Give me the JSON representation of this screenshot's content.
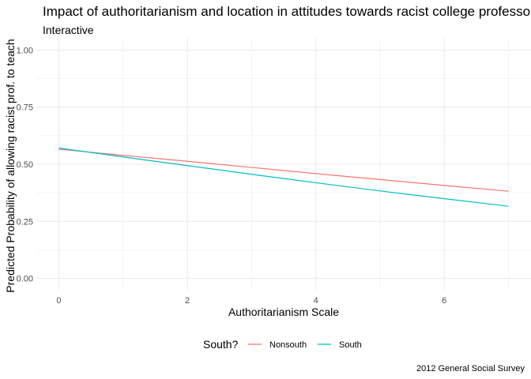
{
  "chart_data": {
    "type": "line",
    "title": "Impact of authoritarianism and location in attitudes towards racist college professors",
    "subtitle": "Interactive",
    "xlabel": "Authoritarianism Scale",
    "ylabel": "Predicted Probability of allowing racist prof. to teach",
    "caption": "2012 General Social Survey",
    "xlim": [
      -0.35,
      7.35
    ],
    "ylim": [
      -0.05,
      1.05
    ],
    "x_ticks": [
      0,
      2,
      4,
      6
    ],
    "x_tick_labels": [
      "0",
      "2",
      "4",
      "6"
    ],
    "y_ticks": [
      0,
      0.25,
      0.5,
      0.75,
      1.0
    ],
    "y_tick_labels": [
      "0.00",
      "0.25",
      "0.50",
      "0.75",
      "1.00"
    ],
    "grid": true,
    "legend": {
      "title": "South?",
      "position": "bottom"
    },
    "series": [
      {
        "name": "Nonsouth",
        "color": "#F8766D",
        "x": [
          0,
          1,
          2,
          3,
          4,
          5,
          6,
          7
        ],
        "y": [
          0.566,
          0.539,
          0.513,
          0.486,
          0.459,
          0.433,
          0.407,
          0.382
        ]
      },
      {
        "name": "South",
        "color": "#00BFC4",
        "x": [
          0,
          1,
          2,
          3,
          4,
          5,
          6,
          7
        ],
        "y": [
          0.571,
          0.532,
          0.494,
          0.456,
          0.419,
          0.383,
          0.349,
          0.316
        ]
      }
    ]
  }
}
